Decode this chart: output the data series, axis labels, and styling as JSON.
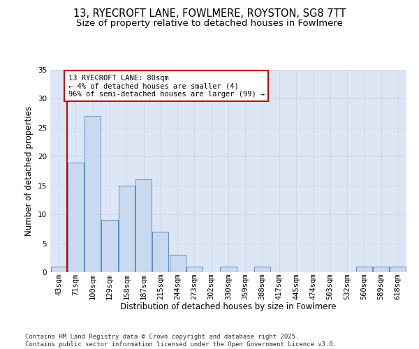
{
  "title_line1": "13, RYECROFT LANE, FOWLMERE, ROYSTON, SG8 7TT",
  "title_line2": "Size of property relative to detached houses in Fowlmere",
  "xlabel": "Distribution of detached houses by size in Fowlmere",
  "ylabel": "Number of detached properties",
  "categories": [
    "43sqm",
    "71sqm",
    "100sqm",
    "129sqm",
    "158sqm",
    "187sqm",
    "215sqm",
    "244sqm",
    "273sqm",
    "302sqm",
    "330sqm",
    "359sqm",
    "388sqm",
    "417sqm",
    "445sqm",
    "474sqm",
    "503sqm",
    "532sqm",
    "560sqm",
    "589sqm",
    "618sqm"
  ],
  "values": [
    1,
    19,
    27,
    9,
    15,
    16,
    7,
    3,
    1,
    0,
    1,
    0,
    1,
    0,
    0,
    0,
    0,
    0,
    1,
    1,
    1
  ],
  "bar_color": "#c9d9f0",
  "bar_edge_color": "#5b8dc8",
  "grid_color": "#d0d8e8",
  "plot_bg_color": "#dce6f5",
  "fig_bg_color": "#ffffff",
  "vline_color": "#cc0000",
  "annotation_text": "13 RYECROFT LANE: 80sqm\n← 4% of detached houses are smaller (4)\n96% of semi-detached houses are larger (99) →",
  "annotation_box_facecolor": "#ffffff",
  "annotation_box_edgecolor": "#cc0000",
  "ylim": [
    0,
    35
  ],
  "yticks": [
    0,
    5,
    10,
    15,
    20,
    25,
    30,
    35
  ],
  "footer_line1": "Contains HM Land Registry data © Crown copyright and database right 2025.",
  "footer_line2": "Contains public sector information licensed under the Open Government Licence v3.0.",
  "title_fontsize": 10.5,
  "subtitle_fontsize": 9.5,
  "axis_label_fontsize": 8.5,
  "tick_fontsize": 7.5,
  "annotation_fontsize": 7.5,
  "footer_fontsize": 6.5
}
